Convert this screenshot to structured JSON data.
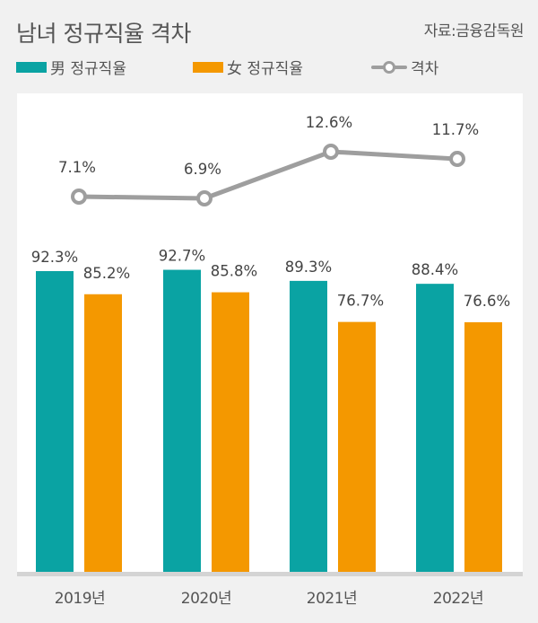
{
  "header": {
    "title": "남녀 정규직율 격차",
    "source": "자료:금융감독원"
  },
  "legend": [
    {
      "label": "男 정규직율",
      "color": "#0aa3a3",
      "kind": "bar"
    },
    {
      "label": "女 정규직율",
      "color": "#f49800",
      "kind": "bar"
    },
    {
      "label": "격차",
      "color": "#9e9e9e",
      "kind": "line"
    }
  ],
  "colors": {
    "male": "#0aa3a3",
    "female": "#f49800",
    "gap_line": "#9e9e9e",
    "panel": "#ffffff",
    "background": "#f1f1f1",
    "baseline": "#d4d4d4"
  },
  "labels": {
    "male": [
      "92.3%",
      "92.7%",
      "89.3%",
      "88.4%"
    ],
    "female": [
      "85.2%",
      "85.8%",
      "76.7%",
      "76.6%"
    ],
    "gap": [
      "7.1%",
      "6.9%",
      "12.6%",
      "11.7%"
    ],
    "x": [
      "2019년",
      "2020년",
      "2021년",
      "2022년"
    ]
  },
  "chart_data": {
    "type": "bar",
    "title": "남녀 정규직율 격차",
    "subtitle": "자료:금융감독원",
    "categories": [
      "2019년",
      "2020년",
      "2021년",
      "2022년"
    ],
    "series": [
      {
        "name": "男 정규직율",
        "type": "bar",
        "values": [
          92.3,
          92.7,
          89.3,
          88.4
        ],
        "unit": "%"
      },
      {
        "name": "女 정규직율",
        "type": "bar",
        "values": [
          85.2,
          85.8,
          76.7,
          76.6
        ],
        "unit": "%"
      },
      {
        "name": "격차",
        "type": "line",
        "values": [
          7.1,
          6.9,
          12.6,
          11.7
        ],
        "unit": "%"
      }
    ],
    "xlabel": "",
    "ylabel": "",
    "grid": false,
    "legend_position": "top",
    "data_labels": true
  }
}
